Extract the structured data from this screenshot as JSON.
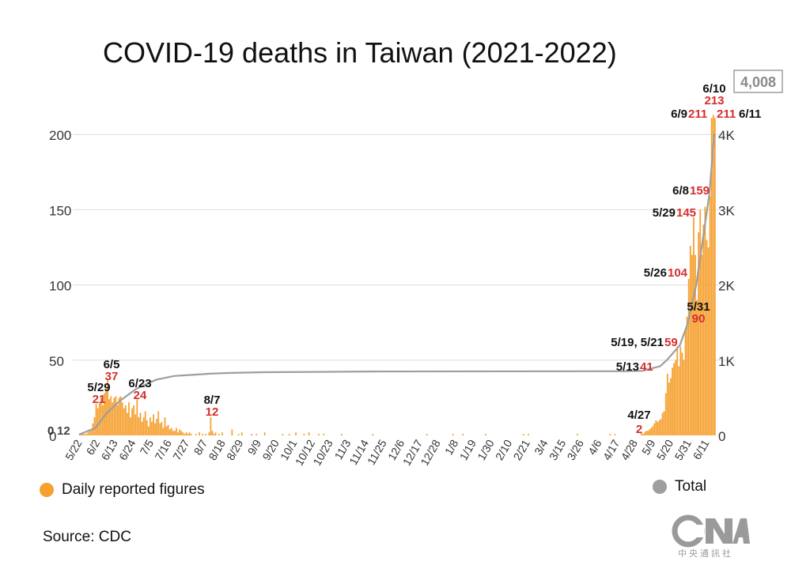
{
  "colors": {
    "daily": "#F5A02F",
    "total": "#9E9E9E",
    "highlight": "#D62E2E",
    "date": "#111111",
    "grid": "#DDDDDD"
  },
  "source": "Source: CDC",
  "logo": {
    "name": "CNA",
    "caption": "中央通訊社"
  },
  "legend": {
    "daily": "Daily reported figures",
    "total": "Total"
  },
  "chart_data": {
    "type": "bar+line",
    "title": "COVID-19 deaths in Taiwan (2021-2022)",
    "y_left": {
      "range": [
        0,
        200
      ],
      "ticks": [
        "0",
        "50",
        "100",
        "150",
        "200"
      ]
    },
    "y_right": {
      "range": [
        0,
        4000
      ],
      "ticks": [
        "0",
        "1K",
        "2K",
        "3K",
        "4K"
      ]
    },
    "x_tick_labels": [
      "5/22",
      "6/2",
      "6/13",
      "6/24",
      "7/5",
      "7/16",
      "7/27",
      "8/7",
      "8/18",
      "8/29",
      "9/9",
      "9/20",
      "10/1",
      "10/12",
      "10/23",
      "11/3",
      "11/14",
      "11/25",
      "12/6",
      "12/17",
      "12/28",
      "1/8",
      "1/19",
      "1/30",
      "2/10",
      "2/21",
      "3/4",
      "3/15",
      "3/26",
      "4/6",
      "4/17",
      "4/28",
      "5/9",
      "5/20",
      "5/31",
      "6/11"
    ],
    "grid": true,
    "legend_placement": "bottom",
    "series": [
      {
        "name": "Daily reported figures",
        "type": "bar",
        "points": [
          [
            "5/19",
            1
          ],
          [
            "5/20",
            1
          ],
          [
            "5/21",
            1
          ],
          [
            "5/22",
            1
          ],
          [
            "5/23",
            1
          ],
          [
            "5/24",
            2
          ],
          [
            "5/25",
            3
          ],
          [
            "5/26",
            4
          ],
          [
            "5/27",
            8
          ],
          [
            "5/28",
            12
          ],
          [
            "5/29",
            21
          ],
          [
            "5/30",
            18
          ],
          [
            "5/31",
            22
          ],
          [
            "6/1",
            25
          ],
          [
            "6/2",
            20
          ],
          [
            "6/3",
            28
          ],
          [
            "6/4",
            30
          ],
          [
            "6/5",
            37
          ],
          [
            "6/6",
            24
          ],
          [
            "6/7",
            26
          ],
          [
            "6/8",
            22
          ],
          [
            "6/9",
            25
          ],
          [
            "6/10",
            26
          ],
          [
            "6/11",
            20
          ],
          [
            "6/12",
            25
          ],
          [
            "6/13",
            26
          ],
          [
            "6/14",
            22
          ],
          [
            "6/15",
            18
          ],
          [
            "6/16",
            20
          ],
          [
            "6/17",
            15
          ],
          [
            "6/18",
            22
          ],
          [
            "6/19",
            12
          ],
          [
            "6/20",
            18
          ],
          [
            "6/21",
            20
          ],
          [
            "6/22",
            14
          ],
          [
            "6/23",
            24
          ],
          [
            "6/24",
            12
          ],
          [
            "6/25",
            15
          ],
          [
            "6/26",
            9
          ],
          [
            "6/27",
            12
          ],
          [
            "6/28",
            16
          ],
          [
            "6/29",
            10
          ],
          [
            "6/30",
            6
          ],
          [
            "7/1",
            12
          ],
          [
            "7/2",
            9
          ],
          [
            "7/3",
            14
          ],
          [
            "7/4",
            8
          ],
          [
            "7/5",
            11
          ],
          [
            "7/6",
            16
          ],
          [
            "7/7",
            8
          ],
          [
            "7/8",
            9
          ],
          [
            "7/9",
            5
          ],
          [
            "7/10",
            12
          ],
          [
            "7/11",
            6
          ],
          [
            "7/12",
            7
          ],
          [
            "7/13",
            4
          ],
          [
            "7/14",
            5
          ],
          [
            "7/15",
            3
          ],
          [
            "7/16",
            3
          ],
          [
            "7/17",
            5
          ],
          [
            "7/18",
            2
          ],
          [
            "7/19",
            4
          ],
          [
            "7/20",
            3
          ],
          [
            "7/21",
            2
          ],
          [
            "7/22",
            1
          ],
          [
            "7/23",
            2
          ],
          [
            "7/24",
            1
          ],
          [
            "7/25",
            2
          ],
          [
            "7/26",
            1
          ],
          [
            "7/29",
            1
          ],
          [
            "7/31",
            2
          ],
          [
            "8/2",
            1
          ],
          [
            "8/4",
            1
          ],
          [
            "8/6",
            2
          ],
          [
            "8/7",
            12
          ],
          [
            "8/8",
            3
          ],
          [
            "8/9",
            1
          ],
          [
            "8/10",
            2
          ],
          [
            "8/12",
            1
          ],
          [
            "8/14",
            2
          ],
          [
            "8/20",
            4
          ],
          [
            "8/24",
            1
          ],
          [
            "8/26",
            2
          ],
          [
            "9/1",
            1
          ],
          [
            "9/4",
            1
          ],
          [
            "9/9",
            2
          ],
          [
            "9/20",
            1
          ],
          [
            "9/24",
            1
          ],
          [
            "9/28",
            2
          ],
          [
            "10/3",
            1
          ],
          [
            "10/6",
            2
          ],
          [
            "10/12",
            1
          ],
          [
            "10/15",
            1
          ],
          [
            "10/26",
            1
          ],
          [
            "11/14",
            1
          ],
          [
            "12/17",
            1
          ],
          [
            "1/2",
            1
          ],
          [
            "1/8",
            1
          ],
          [
            "1/22",
            1
          ],
          [
            "2/14",
            1
          ],
          [
            "2/17",
            1
          ],
          [
            "3/19",
            1
          ],
          [
            "4/8",
            1
          ],
          [
            "4/11",
            1
          ],
          [
            "4/27",
            2
          ],
          [
            "4/28",
            1
          ],
          [
            "4/29",
            2
          ],
          [
            "4/30",
            3
          ],
          [
            "5/1",
            3
          ],
          [
            "5/2",
            4
          ],
          [
            "5/3",
            5
          ],
          [
            "5/4",
            6
          ],
          [
            "5/5",
            8
          ],
          [
            "5/6",
            10
          ],
          [
            "5/7",
            9
          ],
          [
            "5/8",
            10
          ],
          [
            "5/9",
            11
          ],
          [
            "5/10",
            15
          ],
          [
            "5/11",
            16
          ],
          [
            "5/12",
            28
          ],
          [
            "5/13",
            41
          ],
          [
            "5/14",
            35
          ],
          [
            "5/15",
            38
          ],
          [
            "5/16",
            45
          ],
          [
            "5/17",
            48
          ],
          [
            "5/18",
            50
          ],
          [
            "5/19",
            59
          ],
          [
            "5/20",
            46
          ],
          [
            "5/21",
            59
          ],
          [
            "5/22",
            55
          ],
          [
            "5/23",
            50
          ],
          [
            "5/24",
            70
          ],
          [
            "5/25",
            79
          ],
          [
            "5/26",
            104
          ],
          [
            "5/27",
            126
          ],
          [
            "5/28",
            120
          ],
          [
            "5/29",
            145
          ],
          [
            "5/30",
            120
          ],
          [
            "5/31",
            90
          ],
          [
            "6/1",
            135
          ],
          [
            "6/2",
            150
          ],
          [
            "6/3",
            120
          ],
          [
            "6/4",
            140
          ],
          [
            "6/5",
            152
          ],
          [
            "6/6",
            130
          ],
          [
            "6/7",
            125
          ],
          [
            "6/8",
            159
          ],
          [
            "6/9",
            211
          ],
          [
            "6/10",
            213
          ],
          [
            "6/11",
            211
          ]
        ]
      },
      {
        "name": "Total",
        "type": "line",
        "points": [
          [
            "5/19",
            12
          ],
          [
            "5/29",
            100
          ],
          [
            "6/5",
            300
          ],
          [
            "6/13",
            460
          ],
          [
            "6/23",
            620
          ],
          [
            "7/5",
            740
          ],
          [
            "7/16",
            790
          ],
          [
            "7/27",
            805
          ],
          [
            "8/7",
            820
          ],
          [
            "8/18",
            830
          ],
          [
            "9/9",
            840
          ],
          [
            "10/12",
            845
          ],
          [
            "11/14",
            850
          ],
          [
            "4/17",
            853
          ],
          [
            "4/28",
            858
          ],
          [
            "5/9",
            920
          ],
          [
            "5/13",
            1000
          ],
          [
            "5/21",
            1200
          ],
          [
            "5/26",
            1500
          ],
          [
            "5/31",
            2000
          ],
          [
            "6/4",
            2600
          ],
          [
            "6/8",
            3200
          ],
          [
            "6/11",
            4008
          ]
        ]
      }
    ],
    "annotations": [
      {
        "date": "0",
        "value": "12"
      },
      {
        "date": "5/29",
        "value": "21"
      },
      {
        "date": "6/5",
        "value": "37"
      },
      {
        "date": "6/23",
        "value": "24"
      },
      {
        "date": "8/7",
        "value": "12"
      },
      {
        "date": "4/27",
        "value": "2"
      },
      {
        "date": "5/13",
        "value": "41"
      },
      {
        "date": "5/19, 5/21",
        "value": "59"
      },
      {
        "date": "5/26",
        "value": "104"
      },
      {
        "date": "5/29",
        "value": "145"
      },
      {
        "date": "5/31",
        "value": "90"
      },
      {
        "date": "6/8",
        "value": "159"
      },
      {
        "date": "6/9",
        "value": "211"
      },
      {
        "date": "6/10",
        "value": "213"
      },
      {
        "date": "6/11",
        "value": "211"
      }
    ],
    "total_callout": "4,008"
  }
}
